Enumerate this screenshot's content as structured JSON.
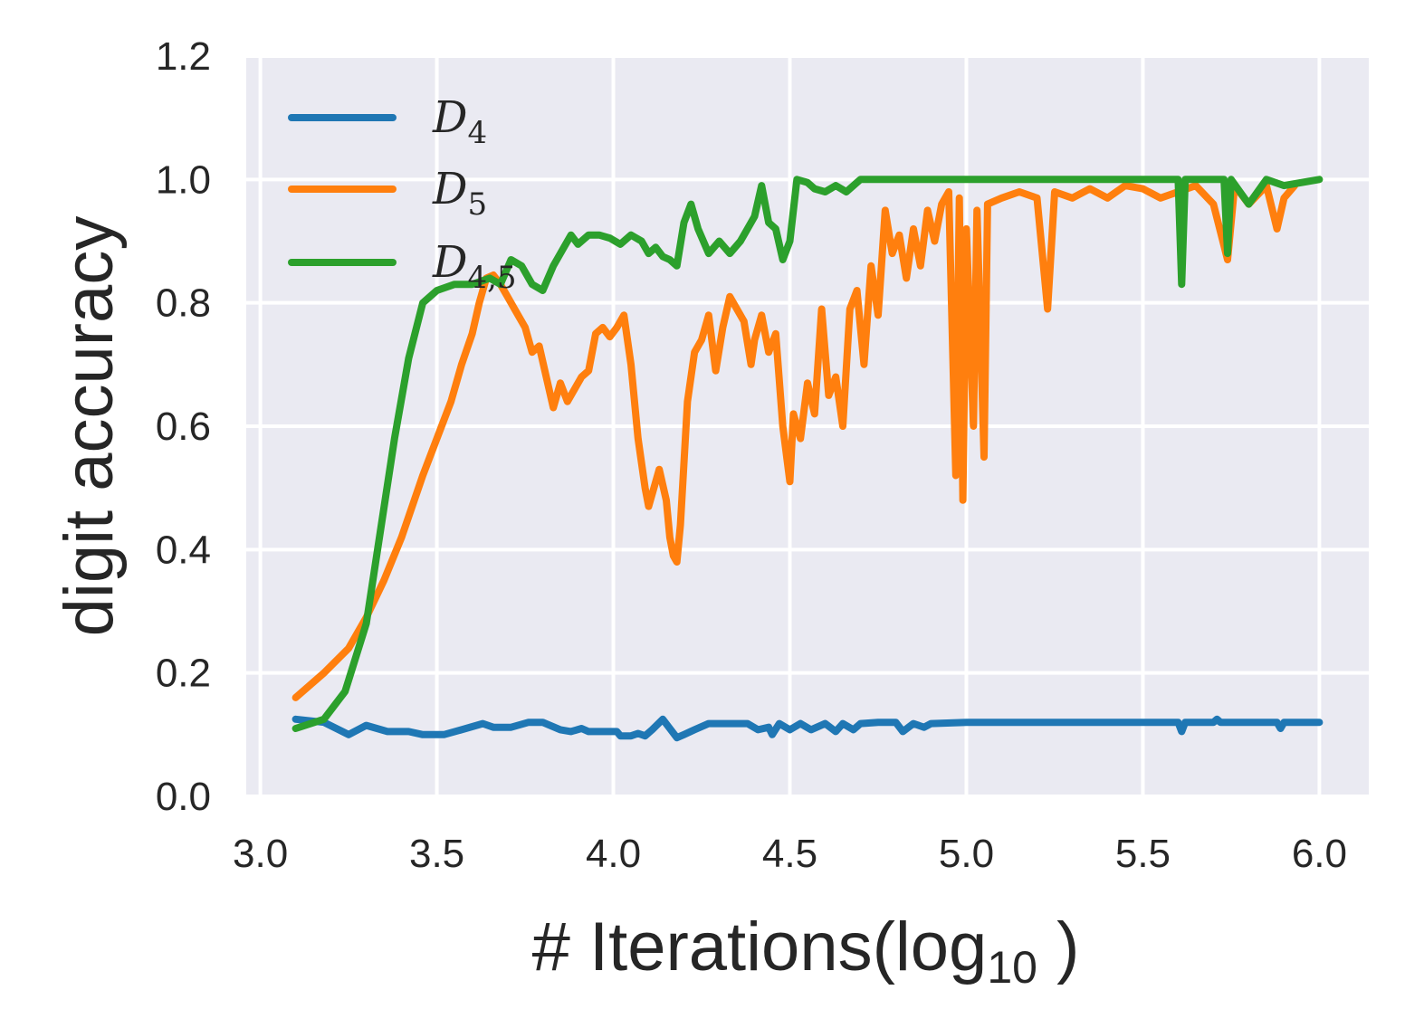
{
  "chart_data": {
    "type": "line",
    "title": "",
    "xlabel": "# Iterations(log",
    "xlabel_sub": "10",
    "xlabel_end": " )",
    "ylabel": "digit accuracy",
    "xlim": [
      2.96,
      6.14
    ],
    "ylim": [
      0.0,
      1.2
    ],
    "xticks": [
      3.0,
      3.5,
      4.0,
      4.5,
      5.0,
      5.5,
      6.0
    ],
    "yticks": [
      0.0,
      0.2,
      0.4,
      0.6,
      0.8,
      1.0,
      1.2
    ],
    "xtick_labels": [
      "3.0",
      "3.5",
      "4.0",
      "4.5",
      "5.0",
      "5.5",
      "6.0"
    ],
    "ytick_labels": [
      "0.0",
      "0.2",
      "0.4",
      "0.6",
      "0.8",
      "1.0",
      "1.2"
    ],
    "grid": true,
    "legend_placement": "top-left",
    "series": [
      {
        "name": "D",
        "sub": "4",
        "color": "#1f77b4",
        "points": [
          [
            3.1,
            0.125
          ],
          [
            3.18,
            0.12
          ],
          [
            3.25,
            0.1
          ],
          [
            3.3,
            0.115
          ],
          [
            3.36,
            0.105
          ],
          [
            3.42,
            0.105
          ],
          [
            3.46,
            0.1
          ],
          [
            3.52,
            0.1
          ],
          [
            3.57,
            0.108
          ],
          [
            3.63,
            0.118
          ],
          [
            3.66,
            0.112
          ],
          [
            3.71,
            0.112
          ],
          [
            3.76,
            0.12
          ],
          [
            3.8,
            0.12
          ],
          [
            3.85,
            0.108
          ],
          [
            3.88,
            0.105
          ],
          [
            3.91,
            0.11
          ],
          [
            3.93,
            0.105
          ],
          [
            3.97,
            0.105
          ],
          [
            4.01,
            0.105
          ],
          [
            4.02,
            0.098
          ],
          [
            4.05,
            0.098
          ],
          [
            4.07,
            0.102
          ],
          [
            4.09,
            0.098
          ],
          [
            4.11,
            0.108
          ],
          [
            4.14,
            0.125
          ],
          [
            4.16,
            0.11
          ],
          [
            4.18,
            0.095
          ],
          [
            4.2,
            0.1
          ],
          [
            4.23,
            0.108
          ],
          [
            4.27,
            0.118
          ],
          [
            4.33,
            0.118
          ],
          [
            4.38,
            0.118
          ],
          [
            4.41,
            0.108
          ],
          [
            4.44,
            0.112
          ],
          [
            4.45,
            0.1
          ],
          [
            4.47,
            0.118
          ],
          [
            4.5,
            0.108
          ],
          [
            4.53,
            0.118
          ],
          [
            4.56,
            0.108
          ],
          [
            4.6,
            0.118
          ],
          [
            4.63,
            0.105
          ],
          [
            4.65,
            0.118
          ],
          [
            4.68,
            0.108
          ],
          [
            4.7,
            0.118
          ],
          [
            4.75,
            0.12
          ],
          [
            4.8,
            0.12
          ],
          [
            4.82,
            0.105
          ],
          [
            4.85,
            0.118
          ],
          [
            4.88,
            0.112
          ],
          [
            4.9,
            0.118
          ],
          [
            5.0,
            0.12
          ],
          [
            5.3,
            0.12
          ],
          [
            5.6,
            0.12
          ],
          [
            5.61,
            0.105
          ],
          [
            5.62,
            0.12
          ],
          [
            5.7,
            0.12
          ],
          [
            5.71,
            0.125
          ],
          [
            5.72,
            0.12
          ],
          [
            5.88,
            0.12
          ],
          [
            5.89,
            0.11
          ],
          [
            5.9,
            0.12
          ],
          [
            6.0,
            0.12
          ]
        ]
      },
      {
        "name": "D",
        "sub": "5",
        "color": "#ff7f0e",
        "points": [
          [
            3.1,
            0.16
          ],
          [
            3.18,
            0.2
          ],
          [
            3.25,
            0.24
          ],
          [
            3.3,
            0.29
          ],
          [
            3.35,
            0.35
          ],
          [
            3.4,
            0.42
          ],
          [
            3.46,
            0.52
          ],
          [
            3.5,
            0.58
          ],
          [
            3.54,
            0.64
          ],
          [
            3.57,
            0.7
          ],
          [
            3.6,
            0.75
          ],
          [
            3.62,
            0.8
          ],
          [
            3.64,
            0.84
          ],
          [
            3.66,
            0.845
          ],
          [
            3.68,
            0.83
          ],
          [
            3.7,
            0.81
          ],
          [
            3.72,
            0.79
          ],
          [
            3.75,
            0.76
          ],
          [
            3.77,
            0.72
          ],
          [
            3.79,
            0.73
          ],
          [
            3.81,
            0.68
          ],
          [
            3.83,
            0.63
          ],
          [
            3.85,
            0.67
          ],
          [
            3.87,
            0.64
          ],
          [
            3.89,
            0.66
          ],
          [
            3.91,
            0.68
          ],
          [
            3.93,
            0.69
          ],
          [
            3.95,
            0.75
          ],
          [
            3.97,
            0.76
          ],
          [
            3.99,
            0.745
          ],
          [
            4.01,
            0.76
          ],
          [
            4.03,
            0.78
          ],
          [
            4.05,
            0.7
          ],
          [
            4.07,
            0.58
          ],
          [
            4.09,
            0.5
          ],
          [
            4.1,
            0.47
          ],
          [
            4.12,
            0.51
          ],
          [
            4.13,
            0.53
          ],
          [
            4.15,
            0.48
          ],
          [
            4.16,
            0.42
          ],
          [
            4.17,
            0.39
          ],
          [
            4.18,
            0.38
          ],
          [
            4.19,
            0.44
          ],
          [
            4.21,
            0.64
          ],
          [
            4.23,
            0.72
          ],
          [
            4.25,
            0.74
          ],
          [
            4.27,
            0.78
          ],
          [
            4.29,
            0.69
          ],
          [
            4.31,
            0.76
          ],
          [
            4.33,
            0.81
          ],
          [
            4.35,
            0.79
          ],
          [
            4.37,
            0.77
          ],
          [
            4.39,
            0.7
          ],
          [
            4.4,
            0.74
          ],
          [
            4.42,
            0.78
          ],
          [
            4.44,
            0.72
          ],
          [
            4.46,
            0.75
          ],
          [
            4.48,
            0.6
          ],
          [
            4.5,
            0.51
          ],
          [
            4.51,
            0.62
          ],
          [
            4.53,
            0.58
          ],
          [
            4.55,
            0.67
          ],
          [
            4.57,
            0.62
          ],
          [
            4.59,
            0.79
          ],
          [
            4.61,
            0.65
          ],
          [
            4.63,
            0.68
          ],
          [
            4.65,
            0.6
          ],
          [
            4.67,
            0.79
          ],
          [
            4.69,
            0.82
          ],
          [
            4.71,
            0.7
          ],
          [
            4.73,
            0.86
          ],
          [
            4.75,
            0.78
          ],
          [
            4.77,
            0.95
          ],
          [
            4.79,
            0.88
          ],
          [
            4.81,
            0.91
          ],
          [
            4.83,
            0.84
          ],
          [
            4.85,
            0.92
          ],
          [
            4.87,
            0.86
          ],
          [
            4.89,
            0.95
          ],
          [
            4.91,
            0.9
          ],
          [
            4.93,
            0.96
          ],
          [
            4.95,
            0.98
          ],
          [
            4.97,
            0.52
          ],
          [
            4.98,
            0.97
          ],
          [
            4.99,
            0.48
          ],
          [
            5.0,
            0.92
          ],
          [
            5.02,
            0.6
          ],
          [
            5.03,
            0.95
          ],
          [
            5.05,
            0.55
          ],
          [
            5.06,
            0.96
          ],
          [
            5.1,
            0.97
          ],
          [
            5.15,
            0.98
          ],
          [
            5.2,
            0.97
          ],
          [
            5.23,
            0.79
          ],
          [
            5.25,
            0.98
          ],
          [
            5.3,
            0.97
          ],
          [
            5.35,
            0.985
          ],
          [
            5.4,
            0.97
          ],
          [
            5.45,
            0.99
          ],
          [
            5.5,
            0.985
          ],
          [
            5.55,
            0.97
          ],
          [
            5.6,
            0.98
          ],
          [
            5.65,
            0.99
          ],
          [
            5.7,
            0.96
          ],
          [
            5.74,
            0.87
          ],
          [
            5.76,
            0.99
          ],
          [
            5.8,
            0.96
          ],
          [
            5.85,
            0.99
          ],
          [
            5.88,
            0.92
          ],
          [
            5.9,
            0.97
          ],
          [
            5.93,
            0.99
          ]
        ]
      },
      {
        "name": "D",
        "sub": "4,5",
        "color": "#2ca02c",
        "points": [
          [
            3.1,
            0.11
          ],
          [
            3.18,
            0.125
          ],
          [
            3.24,
            0.17
          ],
          [
            3.3,
            0.28
          ],
          [
            3.34,
            0.43
          ],
          [
            3.38,
            0.58
          ],
          [
            3.42,
            0.71
          ],
          [
            3.46,
            0.8
          ],
          [
            3.5,
            0.82
          ],
          [
            3.55,
            0.83
          ],
          [
            3.6,
            0.83
          ],
          [
            3.65,
            0.84
          ],
          [
            3.68,
            0.83
          ],
          [
            3.71,
            0.87
          ],
          [
            3.74,
            0.86
          ],
          [
            3.77,
            0.83
          ],
          [
            3.8,
            0.82
          ],
          [
            3.83,
            0.86
          ],
          [
            3.86,
            0.89
          ],
          [
            3.88,
            0.91
          ],
          [
            3.9,
            0.895
          ],
          [
            3.93,
            0.91
          ],
          [
            3.96,
            0.91
          ],
          [
            3.99,
            0.905
          ],
          [
            4.02,
            0.895
          ],
          [
            4.05,
            0.91
          ],
          [
            4.08,
            0.9
          ],
          [
            4.1,
            0.88
          ],
          [
            4.12,
            0.89
          ],
          [
            4.14,
            0.875
          ],
          [
            4.16,
            0.87
          ],
          [
            4.18,
            0.86
          ],
          [
            4.2,
            0.93
          ],
          [
            4.22,
            0.96
          ],
          [
            4.24,
            0.92
          ],
          [
            4.27,
            0.88
          ],
          [
            4.3,
            0.9
          ],
          [
            4.33,
            0.88
          ],
          [
            4.36,
            0.9
          ],
          [
            4.38,
            0.92
          ],
          [
            4.4,
            0.94
          ],
          [
            4.42,
            0.99
          ],
          [
            4.44,
            0.93
          ],
          [
            4.46,
            0.92
          ],
          [
            4.48,
            0.87
          ],
          [
            4.5,
            0.9
          ],
          [
            4.52,
            1.0
          ],
          [
            4.55,
            0.995
          ],
          [
            4.57,
            0.985
          ],
          [
            4.6,
            0.98
          ],
          [
            4.63,
            0.99
          ],
          [
            4.66,
            0.98
          ],
          [
            4.7,
            1.0
          ],
          [
            4.8,
            1.0
          ],
          [
            5.0,
            1.0
          ],
          [
            5.5,
            1.0
          ],
          [
            5.6,
            1.0
          ],
          [
            5.61,
            0.83
          ],
          [
            5.62,
            1.0
          ],
          [
            5.73,
            1.0
          ],
          [
            5.74,
            0.88
          ],
          [
            5.75,
            1.0
          ],
          [
            5.8,
            0.96
          ],
          [
            5.85,
            1.0
          ],
          [
            5.9,
            0.99
          ],
          [
            6.0,
            1.0
          ]
        ]
      }
    ]
  }
}
